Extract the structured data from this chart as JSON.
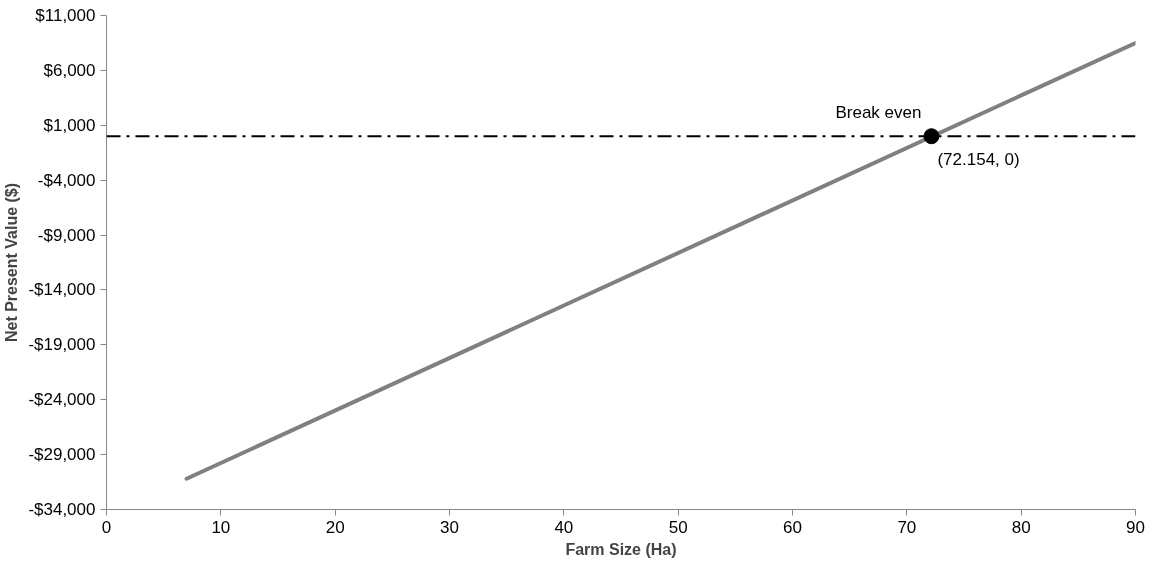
{
  "chart_data": {
    "type": "line",
    "xlabel": "Farm Size (Ha)",
    "ylabel": "Net Present Value ($)",
    "xlim": [
      0,
      90
    ],
    "xticks": [
      0,
      10,
      20,
      30,
      40,
      50,
      60,
      70,
      80,
      90
    ],
    "ylim": [
      -34000,
      11000
    ],
    "yticks": [
      {
        "value": -34000,
        "label": "-$34,000"
      },
      {
        "value": -29000,
        "label": "-$29,000"
      },
      {
        "value": -24000,
        "label": "-$24,000"
      },
      {
        "value": -19000,
        "label": "-$19,000"
      },
      {
        "value": -14000,
        "label": "-$14,000"
      },
      {
        "value": -9000,
        "label": "-$9,000"
      },
      {
        "value": -4000,
        "label": "-$4,000"
      },
      {
        "value": 1000,
        "label": "$1,000"
      },
      {
        "value": 6000,
        "label": "$6,000"
      },
      {
        "value": 11000,
        "label": "$11,000"
      }
    ],
    "grid": false,
    "series": [
      {
        "color": "#808080",
        "x": [
          7,
          90
        ],
        "values": [
          -31200,
          8500
        ],
        "marker": "none"
      },
      {
        "type": "scatter",
        "color": "#000000",
        "x": [
          72.154
        ],
        "values": [
          0
        ],
        "marker": "circle"
      }
    ],
    "ref_lines": [
      {
        "axis": "y",
        "value": 0,
        "color": "#000000",
        "line_style": "dashdot"
      }
    ],
    "annotations": [
      {
        "text": "Break even",
        "x": 72.154,
        "y": 0
      },
      {
        "text": "(72.154, 0)",
        "x": 72.154,
        "y": 0
      }
    ]
  }
}
